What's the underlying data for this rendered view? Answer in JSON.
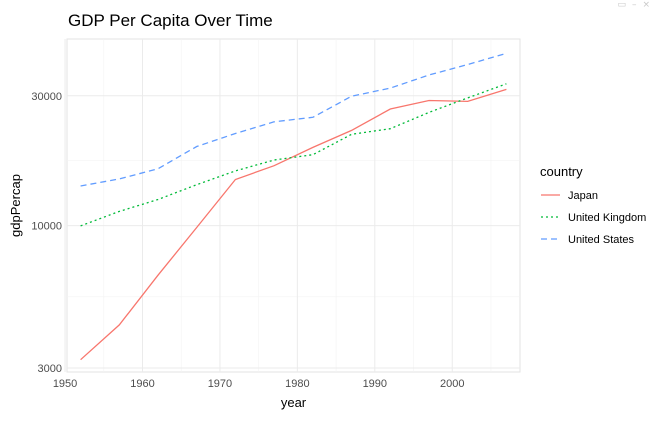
{
  "window": {
    "controls": [
      "▭",
      "–",
      "×"
    ]
  },
  "chart_data": {
    "type": "line",
    "title": "GDP Per Capita Over Time",
    "xlabel": "year",
    "ylabel": "gdpPercap",
    "x": [
      1952,
      1957,
      1962,
      1967,
      1972,
      1977,
      1982,
      1987,
      1992,
      1997,
      2002,
      2007
    ],
    "xlim": [
      1950.25,
      2008.75
    ],
    "ylim": [
      2900,
      48500
    ],
    "yscale": "log10",
    "x_ticks": [
      1950,
      1960,
      1970,
      1980,
      1990,
      2000
    ],
    "y_ticks": [
      3000,
      10000,
      30000
    ],
    "grid": true,
    "legend": {
      "title": "country",
      "position": "right"
    },
    "series": [
      {
        "name": "Japan",
        "color": "#F8766D",
        "dash": "solid",
        "values": [
          3217,
          4318,
          6577,
          9848,
          14779,
          16610,
          19384,
          22376,
          26825,
          28817,
          28605,
          31656
        ]
      },
      {
        "name": "United Kingdom",
        "color": "#00BA38",
        "dash": "dotted",
        "values": [
          9980,
          11283,
          12477,
          14143,
          15895,
          17429,
          18232,
          21664,
          22705,
          26075,
          29479,
          33203
        ]
      },
      {
        "name": "United States",
        "color": "#619CFF",
        "dash": "dashed",
        "values": [
          13990,
          14847,
          16173,
          19530,
          21806,
          24073,
          25010,
          29884,
          32004,
          35767,
          39097,
          42952
        ]
      }
    ]
  }
}
